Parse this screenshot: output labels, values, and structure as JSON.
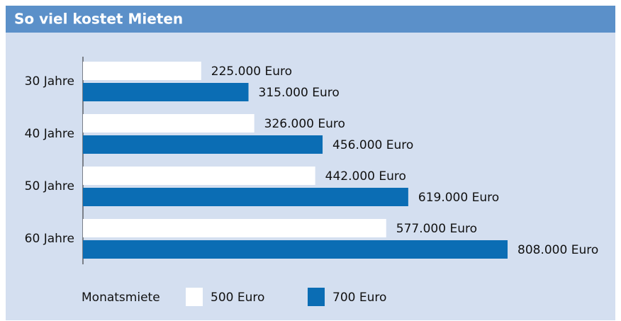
{
  "chart_data": {
    "type": "bar",
    "orientation": "horizontal",
    "title": "So viel kostet Mieten",
    "categories": [
      "30 Jahre",
      "40 Jahre",
      "50 Jahre",
      "60 Jahre"
    ],
    "legend_title": "Monatsmiete",
    "series": [
      {
        "name": "500 Euro",
        "color": "#ffffff",
        "values": [
          225000,
          326000,
          442000,
          577000
        ],
        "value_labels": [
          "225.000 Euro",
          "326.000 Euro",
          "442.000 Euro",
          "577.000 Euro"
        ]
      },
      {
        "name": "700 Euro",
        "color": "#0b6db4",
        "values": [
          315000,
          456000,
          619000,
          808000
        ],
        "value_labels": [
          "315.000 Euro",
          "456.000 Euro",
          "619.000 Euro",
          "808.000 Euro"
        ]
      }
    ]
  }
}
